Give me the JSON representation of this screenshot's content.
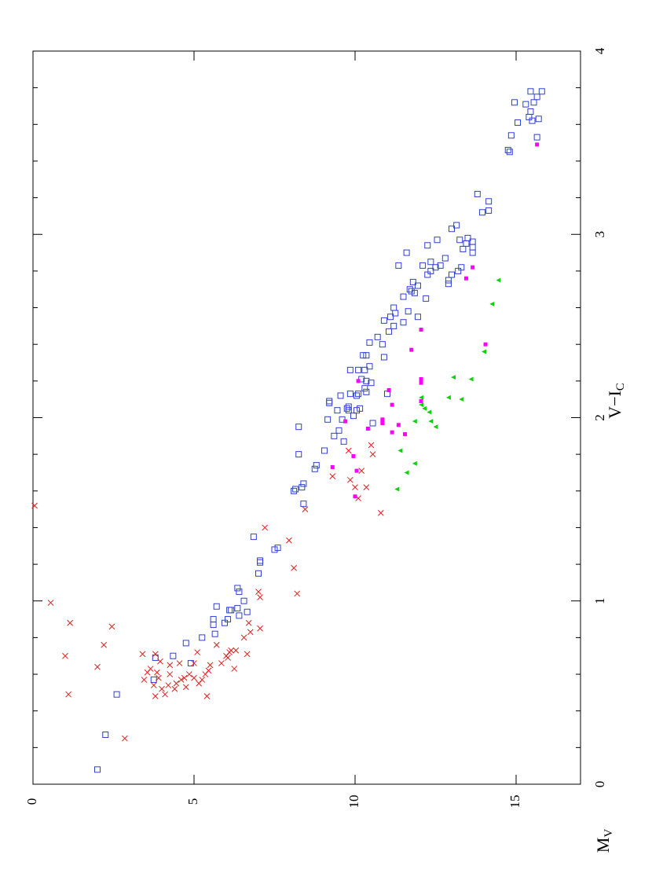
{
  "chart_data": {
    "type": "scatter",
    "xlabel": "M",
    "xlabel_sub": "V",
    "ylabel": "V−I",
    "ylabel_sub": "C",
    "xlim": [
      0,
      17
    ],
    "ylim": [
      0,
      4
    ],
    "xticks": [
      0,
      5,
      10,
      15
    ],
    "yticks": [
      0,
      1,
      2,
      3,
      4
    ],
    "yminorticks": [
      0.2,
      0.4,
      0.6,
      0.8,
      1.2,
      1.4,
      1.6,
      1.8,
      2.2,
      2.4,
      2.6,
      2.8,
      3.2,
      3.4,
      3.6,
      3.8
    ],
    "series": [
      {
        "color": "#2f3fd0",
        "marker": "open-square",
        "x": [
          2.0,
          2.25,
          2.6,
          3.75,
          3.8,
          4.35,
          4.75,
          4.9,
          5.25,
          5.6,
          5.6,
          5.65,
          5.7,
          5.95,
          6.05,
          6.1,
          6.15,
          6.35,
          6.4,
          6.35,
          6.4,
          6.55,
          6.65,
          6.85,
          7.0,
          7.05,
          7.05,
          7.5,
          7.6,
          8.1,
          8.15,
          8.25,
          8.25,
          8.35,
          8.4,
          8.4,
          8.75,
          8.8,
          9.05,
          9.15,
          9.2,
          9.2,
          9.35,
          9.45,
          9.5,
          9.55,
          9.6,
          9.65,
          9.75,
          9.8,
          9.8,
          9.85,
          9.85,
          9.95,
          10.05,
          10.05,
          10.1,
          10.1,
          10.15,
          10.2,
          10.25,
          10.3,
          10.3,
          10.35,
          10.35,
          10.35,
          10.45,
          10.45,
          10.5,
          10.55,
          10.7,
          10.85,
          10.9,
          10.9,
          11.0,
          11.05,
          11.1,
          11.2,
          11.2,
          11.25,
          11.35,
          11.5,
          11.5,
          11.6,
          11.65,
          11.7,
          11.75,
          11.8,
          11.85,
          11.95,
          11.95,
          12.1,
          12.2,
          12.25,
          12.25,
          12.35,
          12.35,
          12.5,
          12.55,
          12.65,
          12.8,
          12.9,
          12.9,
          13.0,
          13.0,
          13.15,
          13.2,
          13.25,
          13.3,
          13.35,
          13.45,
          13.5,
          13.65,
          13.65,
          13.65,
          13.8,
          13.95,
          14.15,
          14.15,
          14.75,
          14.8,
          14.85,
          14.95,
          15.05,
          15.3,
          15.4,
          15.45,
          15.45,
          15.5,
          15.55,
          15.65,
          15.7,
          15.65,
          15.8
        ],
        "y": [
          0.08,
          0.27,
          0.49,
          0.57,
          0.69,
          0.7,
          0.77,
          0.66,
          0.8,
          0.87,
          0.9,
          0.82,
          0.97,
          0.88,
          0.9,
          0.95,
          0.95,
          0.96,
          0.92,
          1.07,
          1.05,
          1.0,
          0.94,
          1.35,
          1.15,
          1.21,
          1.22,
          1.28,
          1.29,
          1.6,
          1.61,
          1.8,
          1.95,
          1.62,
          1.64,
          1.53,
          1.72,
          1.74,
          1.82,
          1.99,
          2.09,
          2.08,
          1.9,
          2.04,
          1.93,
          2.12,
          1.99,
          1.87,
          2.05,
          2.06,
          2.04,
          2.13,
          2.26,
          2.01,
          2.12,
          2.04,
          2.13,
          2.26,
          2.05,
          2.21,
          2.34,
          2.26,
          2.16,
          2.14,
          2.34,
          2.2,
          2.28,
          2.41,
          2.19,
          1.97,
          2.44,
          2.4,
          2.53,
          2.33,
          2.13,
          2.47,
          2.55,
          2.5,
          2.6,
          2.57,
          2.83,
          2.52,
          2.66,
          2.9,
          2.58,
          2.7,
          2.69,
          2.74,
          2.68,
          2.72,
          2.55,
          2.83,
          2.65,
          2.78,
          2.94,
          2.85,
          2.8,
          2.82,
          2.97,
          2.83,
          2.87,
          2.75,
          2.73,
          2.78,
          3.03,
          3.05,
          2.8,
          2.97,
          2.82,
          2.92,
          2.95,
          2.98,
          2.96,
          2.93,
          2.9,
          3.22,
          3.12,
          3.13,
          3.18,
          3.46,
          3.45,
          3.54,
          3.72,
          3.61,
          3.71,
          3.64,
          3.78,
          3.67,
          3.62,
          3.72,
          3.75,
          3.63,
          3.53,
          3.78
        ]
      },
      {
        "color": "#e02020",
        "marker": "cross",
        "x": [
          0.05,
          0.55,
          1.0,
          1.1,
          1.15,
          2.0,
          2.2,
          2.45,
          2.85,
          3.4,
          3.45,
          3.55,
          3.65,
          3.75,
          3.8,
          3.8,
          3.85,
          3.9,
          3.95,
          4.0,
          4.1,
          4.2,
          4.25,
          4.25,
          4.4,
          4.45,
          4.55,
          4.6,
          4.7,
          4.75,
          4.85,
          5.0,
          5.0,
          5.1,
          5.15,
          5.25,
          5.35,
          5.4,
          5.45,
          5.5,
          5.7,
          5.85,
          6.0,
          6.05,
          6.1,
          6.15,
          6.3,
          6.25,
          6.55,
          6.65,
          6.7,
          6.75,
          7.0,
          7.05,
          7.05,
          7.2,
          7.95,
          8.1,
          8.2,
          8.45,
          9.8,
          9.85,
          10.0,
          10.1,
          10.2,
          10.35,
          10.5,
          10.55,
          10.8,
          9.3
        ],
        "y": [
          1.52,
          0.99,
          0.7,
          0.49,
          0.88,
          0.64,
          0.76,
          0.86,
          0.25,
          0.71,
          0.57,
          0.61,
          0.63,
          0.54,
          0.48,
          0.71,
          0.61,
          0.58,
          0.67,
          0.52,
          0.49,
          0.54,
          0.6,
          0.65,
          0.52,
          0.55,
          0.66,
          0.57,
          0.58,
          0.53,
          0.6,
          0.58,
          0.66,
          0.72,
          0.55,
          0.57,
          0.6,
          0.48,
          0.62,
          0.65,
          0.76,
          0.66,
          0.7,
          0.69,
          0.72,
          0.73,
          0.73,
          0.63,
          0.8,
          0.71,
          0.88,
          0.83,
          1.05,
          1.02,
          0.85,
          1.4,
          1.33,
          1.18,
          1.04,
          1.5,
          1.82,
          1.66,
          1.62,
          1.56,
          1.71,
          1.62,
          1.85,
          1.8,
          1.48,
          1.68
        ]
      },
      {
        "color": "#ff00ff",
        "marker": "filled-square",
        "x": [
          9.3,
          9.95,
          10.0,
          10.05,
          10.1,
          9.7,
          10.4,
          10.85,
          10.85,
          11.05,
          11.15,
          11.15,
          11.35,
          11.55,
          11.75,
          12.05,
          12.05,
          12.05,
          12.05,
          13.45,
          13.65,
          14.05,
          15.65
        ],
        "y": [
          1.73,
          1.79,
          1.57,
          1.71,
          2.2,
          1.98,
          1.94,
          1.97,
          1.99,
          2.15,
          2.07,
          1.92,
          1.96,
          1.91,
          2.37,
          2.48,
          2.21,
          2.19,
          2.09,
          2.76,
          2.82,
          2.4,
          3.49
        ]
      },
      {
        "color": "#10d010",
        "marker": "triangle",
        "x": [
          11.3,
          11.4,
          11.6,
          11.85,
          11.85,
          12.05,
          12.05,
          12.15,
          12.3,
          12.35,
          12.5,
          12.9,
          13.05,
          13.3,
          13.6,
          14.0,
          14.25,
          14.45
        ],
        "y": [
          1.61,
          1.82,
          1.7,
          1.75,
          1.98,
          2.07,
          2.11,
          2.05,
          2.03,
          1.98,
          1.95,
          2.11,
          2.22,
          2.1,
          2.21,
          2.36,
          2.62,
          2.75
        ]
      }
    ]
  }
}
